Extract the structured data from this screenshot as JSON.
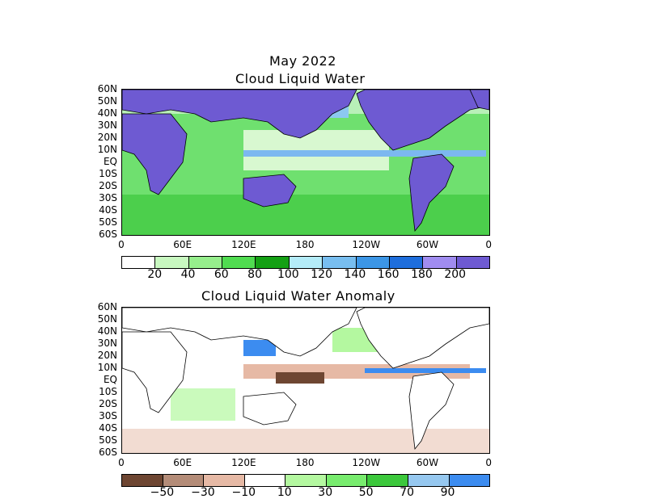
{
  "header": {
    "date": "May 2022"
  },
  "panels": [
    {
      "title": "Cloud Liquid Water",
      "y_ticks": [
        "60N",
        "50N",
        "40N",
        "30N",
        "20N",
        "10N",
        "EQ",
        "10S",
        "20S",
        "30S",
        "40S",
        "50S",
        "60S"
      ],
      "x_ticks": [
        "0",
        "60E",
        "120E",
        "180",
        "120W",
        "60W",
        "0"
      ],
      "colorbar_colors": [
        "#ffffff",
        "#c8f8c0",
        "#96ee8c",
        "#50dc50",
        "#14a014",
        "#b4ecf8",
        "#78bef0",
        "#3c96e6",
        "#1e6edc",
        "#a08cf0",
        "#6e5ad2"
      ],
      "colorbar_labels": [
        "20",
        "40",
        "60",
        "80",
        "100",
        "120",
        "140",
        "160",
        "180",
        "200"
      ],
      "land_color": "#6e5ad2"
    },
    {
      "title": "Cloud Liquid Water Anomaly",
      "y_ticks": [
        "60N",
        "50N",
        "40N",
        "30N",
        "20N",
        "10N",
        "EQ",
        "10S",
        "20S",
        "30S",
        "40S",
        "50S",
        "60S"
      ],
      "x_ticks": [
        "0",
        "60E",
        "120E",
        "180",
        "120W",
        "60W",
        "0"
      ],
      "colorbar_colors": [
        "#6e4632",
        "#b48c78",
        "#e6b9a5",
        "#ffffff",
        "#b4f8a0",
        "#78ec6e",
        "#3cc83c",
        "#96c8f0",
        "#3c8cf0"
      ],
      "colorbar_labels": [
        "−50",
        "−30",
        "−10",
        "10",
        "30",
        "50",
        "70",
        "90"
      ],
      "land_color": "#ffffff"
    }
  ]
}
